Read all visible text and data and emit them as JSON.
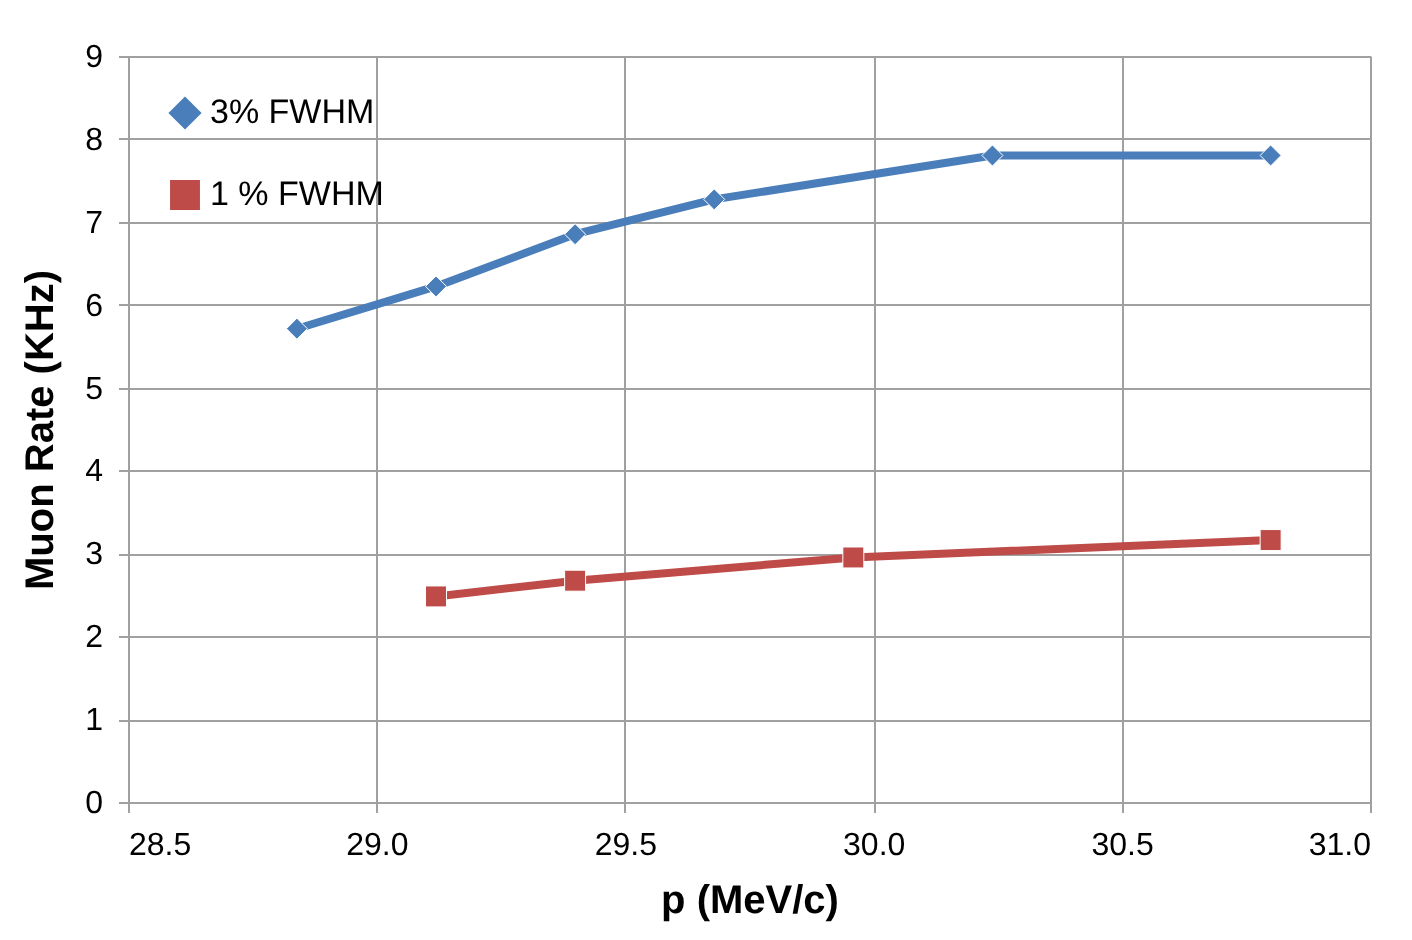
{
  "chart_data": {
    "type": "line",
    "xlabel": "p (MeV/c)",
    "ylabel": "Muon Rate (KHz)",
    "xlim": [
      28.5,
      31.0
    ],
    "xticks": [
      {
        "value": 28.5,
        "label": "28.5"
      },
      {
        "value": 29.0,
        "label": "29.0"
      },
      {
        "value": 29.5,
        "label": "29.5"
      },
      {
        "value": 30.0,
        "label": "30.0"
      },
      {
        "value": 30.5,
        "label": "30.5"
      },
      {
        "value": 31.0,
        "label": "31.0"
      }
    ],
    "ylim": [
      0,
      9
    ],
    "yticks": [
      0,
      1,
      2,
      3,
      4,
      5,
      6,
      7,
      8,
      9
    ],
    "grid": true,
    "legend": "top left",
    "series": [
      {
        "name": "3% FWHM",
        "color": "#4a7ebb",
        "marker": "diamond",
        "x": [
          28.84,
          29.12,
          29.4,
          29.68,
          30.24,
          30.8
        ],
        "values": [
          5.71,
          6.22,
          6.85,
          7.27,
          7.8,
          7.8
        ]
      },
      {
        "name": "1 % FWHM",
        "color": "#be4b48",
        "marker": "square",
        "x": [
          29.12,
          29.4,
          29.96,
          30.8
        ],
        "values": [
          2.48,
          2.67,
          2.95,
          3.16
        ]
      }
    ]
  }
}
